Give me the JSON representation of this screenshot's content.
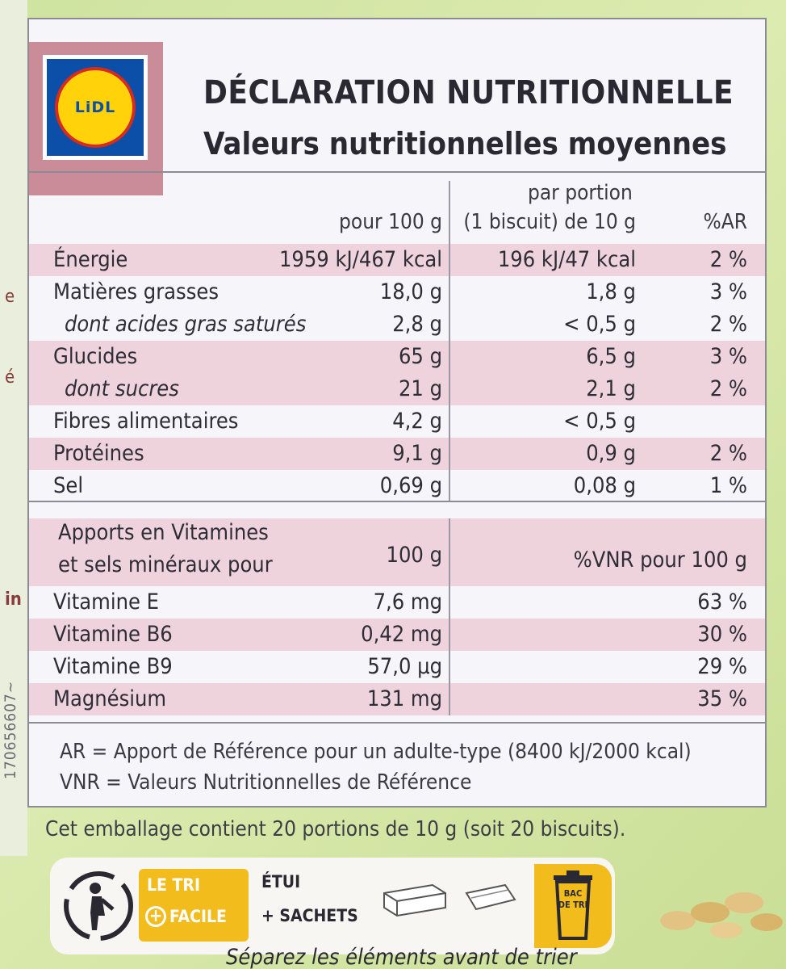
{
  "side": {
    "code": "170656607~",
    "marks_top": "e",
    "marks_mid": "é",
    "marks_bottom": "in"
  },
  "logo": {
    "text": "LiDL"
  },
  "title": {
    "line1": "DÉCLARATION NUTRITIONNELLE",
    "line2": "Valeurs nutritionnelles moyennes"
  },
  "table": {
    "headers": {
      "per100": "pour 100 g",
      "portion_line1": "par portion",
      "portion_line2": "(1 biscuit) de 10 g",
      "ar": "%AR"
    },
    "rows": [
      {
        "name": "Énergie",
        "per100": "1959 kJ/467 kcal",
        "portion": "196 kJ/47 kcal",
        "ar": "2 %"
      },
      {
        "name": "Matières grasses",
        "per100": "18,0 g",
        "portion": "1,8 g",
        "ar": "3 %"
      },
      {
        "name": "dont acides gras saturés",
        "per100": "2,8 g",
        "portion": "< 0,5 g",
        "ar": "2 %"
      },
      {
        "name": "Glucides",
        "per100": "65 g",
        "portion": "6,5 g",
        "ar": "3 %"
      },
      {
        "name": "dont sucres",
        "per100": "21 g",
        "portion": "2,1 g",
        "ar": "2 %"
      },
      {
        "name": "Fibres alimentaires",
        "per100": "4,2 g",
        "portion": "< 0,5 g",
        "ar": ""
      },
      {
        "name": "Protéines",
        "per100": "9,1 g",
        "portion": "0,9 g",
        "ar": "2 %"
      },
      {
        "name": "Sel",
        "per100": "0,69 g",
        "portion": "0,08 g",
        "ar": "1 %"
      }
    ]
  },
  "vitamins": {
    "header_line1": "Apports en Vitamines",
    "header_line2": "et sels minéraux pour",
    "header_per100": "100 g",
    "header_vnr": "%VNR pour 100 g",
    "rows": [
      {
        "name": "Vitamine E",
        "per100": "7,6 mg",
        "vnr": "63 %"
      },
      {
        "name": "Vitamine B6",
        "per100": "0,42 mg",
        "vnr": "30 %"
      },
      {
        "name": "Vitamine B9",
        "per100": "57,0 µg",
        "vnr": "29 %"
      },
      {
        "name": "Magnésium",
        "per100": "131 mg",
        "vnr": "35 %"
      }
    ]
  },
  "footnotes": {
    "ar": "AR = Apport de Référence pour un adulte-type (8400 kJ/2000 kcal)",
    "vnr": "VNR = Valeurs Nutritionnelles de Référence"
  },
  "portions_text": "Cet emballage contient 20 portions de 10 g (soit 20 biscuits).",
  "recycling": {
    "badge_line1": "LE TRI",
    "badge_plus": "+",
    "badge_line2": "FACILE",
    "item1": "ÉTUI",
    "item2": "+ SACHETS",
    "bin_text": "BAC DE TRI",
    "bottom_text": "Séparez les éléments avant de trier"
  },
  "colors": {
    "pink_row": "#efd3dc",
    "badge": "#f3bc1d",
    "logo_blue": "#0b4fa8",
    "logo_yellow": "#ffd20a",
    "logo_red": "#d62b1e"
  }
}
